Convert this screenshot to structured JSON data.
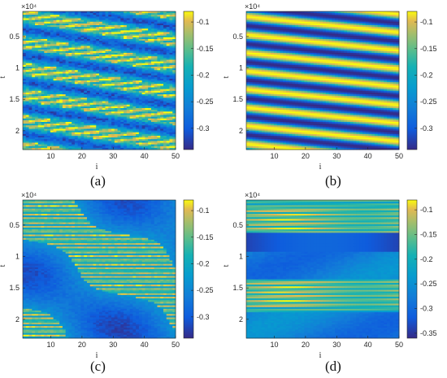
{
  "panels": [
    {
      "id": "a",
      "sublabel": "(a)",
      "chart_data": {
        "type": "heatmap",
        "xlabel": "i",
        "ylabel": "t",
        "x_ticks": [
          10,
          20,
          30,
          40,
          50
        ],
        "y_ticks": [
          0.5,
          1,
          1.5,
          2
        ],
        "y_exponent": "×10⁴",
        "xlim": [
          1,
          50
        ],
        "ylim": [
          0.1,
          2.3
        ],
        "colorbar": {
          "ticks": [
            "-0.1",
            "-0.15",
            "-0.2",
            "-0.25",
            "-0.3"
          ],
          "min": -0.34,
          "max": -0.08,
          "colormap": "parula"
        },
        "pattern": "tilted traveling-wave stripes (descending left to right) with fine-grained speckle"
      }
    },
    {
      "id": "b",
      "sublabel": "(b)",
      "chart_data": {
        "type": "heatmap",
        "xlabel": "i",
        "ylabel": "t",
        "x_ticks": [
          10,
          20,
          30,
          40,
          50
        ],
        "y_ticks": [
          0.5,
          1,
          1.5,
          2
        ],
        "y_exponent": "×10⁴",
        "xlim": [
          1,
          50
        ],
        "ylim": [
          0.1,
          2.3
        ],
        "colorbar": {
          "ticks": [
            "-0.1",
            "-0.15",
            "-0.2",
            "-0.25",
            "-0.3"
          ],
          "min": -0.34,
          "max": -0.08,
          "colormap": "parula"
        },
        "pattern": "smooth periodic tilted stripes (traveling wave)"
      }
    },
    {
      "id": "c",
      "sublabel": "(c)",
      "chart_data": {
        "type": "heatmap",
        "xlabel": "i",
        "ylabel": "t",
        "x_ticks": [
          10,
          20,
          30,
          40,
          50
        ],
        "y_ticks": [
          0.5,
          1,
          1.5,
          2
        ],
        "y_exponent": "×10⁴",
        "xlim": [
          1,
          50
        ],
        "ylim": [
          0.1,
          2.3
        ],
        "colorbar": {
          "ticks": [
            "-0.1",
            "-0.15",
            "-0.2",
            "-0.25",
            "-0.3"
          ],
          "min": -0.34,
          "max": -0.08,
          "colormap": "parula"
        },
        "pattern": "irregular patches mixing fast oscillation regions and low-valued blobs"
      }
    },
    {
      "id": "d",
      "sublabel": "(d)",
      "chart_data": {
        "type": "heatmap",
        "xlabel": "i",
        "ylabel": "t",
        "x_ticks": [
          10,
          20,
          30,
          40,
          50
        ],
        "y_ticks": [
          0.5,
          1,
          1.5,
          2
        ],
        "y_exponent": "×10⁴",
        "xlim": [
          1,
          50
        ],
        "ylim": [
          0.1,
          2.3
        ],
        "colorbar": {
          "ticks": [
            "-0.1",
            "-0.15",
            "-0.2",
            "-0.25",
            "-0.3",
            "-0.35"
          ],
          "min": -0.36,
          "max": -0.08,
          "colormap": "parula"
        },
        "pattern": "horizontal bands: oscillating bands near t=0.3-0.7 and t=1.4-1.9, quiet low-valued bands between"
      }
    }
  ]
}
